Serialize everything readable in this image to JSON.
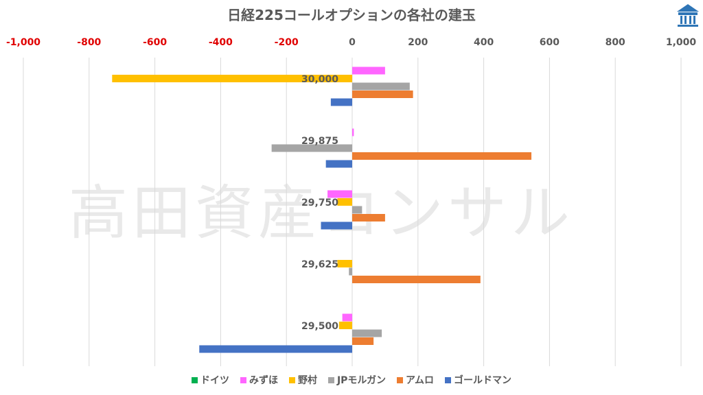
{
  "chart_data": {
    "type": "bar",
    "orientation": "horizontal",
    "title": "日経225コールオプションの各社の建玉",
    "categories": [
      "30,000",
      "29,875",
      "29,750",
      "29,625",
      "29,500"
    ],
    "xlim": [
      -1000,
      1000
    ],
    "x_ticks": [
      "-1,000",
      "-800",
      "-600",
      "-400",
      "-200",
      "0",
      "200",
      "400",
      "600",
      "800",
      "1,000"
    ],
    "x_tick_values": [
      -1000,
      -800,
      -600,
      -400,
      -200,
      0,
      200,
      400,
      600,
      800,
      1000
    ],
    "negative_tick_color": "#e00000",
    "positive_tick_color": "#595959",
    "grid": true,
    "legend_position": "bottom",
    "series": [
      {
        "name": "ドイツ",
        "color": "#00b050",
        "values": [
          0,
          0,
          0,
          0,
          0
        ]
      },
      {
        "name": "みずほ",
        "color": "#ff66ff",
        "values": [
          100,
          5,
          -75,
          0,
          -30
        ]
      },
      {
        "name": "野村",
        "color": "#ffc000",
        "values": [
          -730,
          0,
          -45,
          -45,
          -40
        ]
      },
      {
        "name": "JPモルガン",
        "color": "#a5a5a5",
        "values": [
          175,
          -245,
          30,
          -10,
          90
        ]
      },
      {
        "name": "アムロ",
        "color": "#ed7d31",
        "values": [
          185,
          545,
          100,
          390,
          65
        ]
      },
      {
        "name": "ゴールドマン",
        "color": "#4472c4",
        "values": [
          -65,
          -80,
          -95,
          0,
          -465
        ]
      }
    ]
  },
  "watermark": "高田資産コンサル",
  "logo_icon": "building-logo-icon"
}
